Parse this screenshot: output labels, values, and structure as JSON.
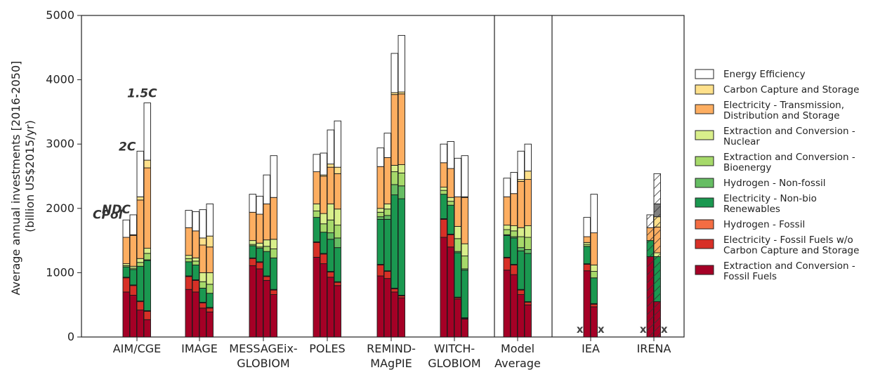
{
  "chart_data": {
    "type": "bar",
    "stacked": true,
    "title": "",
    "ylabel": "Average annual investments [2016-2050]\n(billion US$2015/yr)",
    "ylim": [
      0,
      5000
    ],
    "yticks": [
      0,
      1000,
      2000,
      3000,
      4000,
      5000
    ],
    "grid": false,
    "legend_position": "right",
    "scenario_labels": [
      "CPol",
      "NDC",
      "2C",
      "1.5C"
    ],
    "missing_marker": "x",
    "groups": [
      {
        "label": "AIM/CGE",
        "bars": 4
      },
      {
        "label": "IMAGE",
        "bars": 4
      },
      {
        "label": "MESSAGEix-\nGLOBIOM",
        "bars": 4
      },
      {
        "label": "POLES",
        "bars": 4
      },
      {
        "label": "REMIND-\nMAgPIE",
        "bars": 4
      },
      {
        "label": "WITCH-\nGLOBIOM",
        "bars": 4
      },
      {
        "label": "Model\nAverage",
        "bars": 4
      },
      {
        "label": "IEA",
        "bars": 4,
        "missing": [
          0,
          3
        ]
      },
      {
        "label": "IRENA",
        "bars": 4,
        "missing": [
          0,
          3
        ],
        "hatched": true
      }
    ],
    "series": [
      {
        "name": "Extraction and Conversion -\nFossil Fuels",
        "color": "#a50026",
        "values": [
          [
            700,
            650,
            420,
            270
          ],
          [
            740,
            700,
            450,
            390
          ],
          [
            1110,
            1060,
            880,
            660
          ],
          [
            1240,
            1140,
            930,
            800
          ],
          [
            950,
            910,
            700,
            610
          ],
          [
            1550,
            1400,
            590,
            280
          ],
          [
            1040,
            970,
            660,
            500
          ],
          [
            null,
            1030,
            470,
            null
          ],
          [
            null,
            1250,
            550,
            null
          ]
        ]
      },
      {
        "name": "Electricity - Fossil Fuels w/o\nCarbon Capture and Storage",
        "color": "#d73027",
        "values": [
          [
            220,
            150,
            130,
            130
          ],
          [
            200,
            180,
            80,
            60
          ],
          [
            110,
            100,
            60,
            70
          ],
          [
            230,
            150,
            80,
            50
          ],
          [
            170,
            110,
            50,
            30
          ],
          [
            280,
            190,
            20,
            10
          ],
          [
            190,
            150,
            70,
            40
          ],
          [
            null,
            100,
            40,
            null
          ],
          [
            null,
            0,
            0,
            null
          ]
        ]
      },
      {
        "name": "Hydrogen - Fossil",
        "color": "#f46d43",
        "values": [
          [
            10,
            10,
            10,
            10
          ],
          [
            10,
            10,
            10,
            10
          ],
          [
            10,
            10,
            10,
            10
          ],
          [
            10,
            10,
            10,
            10
          ],
          [
            10,
            10,
            10,
            10
          ],
          [
            10,
            10,
            10,
            10
          ],
          [
            10,
            10,
            10,
            10
          ],
          [
            null,
            10,
            10,
            null
          ],
          [
            null,
            0,
            0,
            null
          ]
        ]
      },
      {
        "name": "Electricity - Non-bio\nRenewables",
        "color": "#1a9850",
        "values": [
          [
            160,
            240,
            540,
            780
          ],
          [
            220,
            230,
            220,
            220
          ],
          [
            190,
            210,
            380,
            490
          ],
          [
            380,
            330,
            500,
            530
          ],
          [
            700,
            800,
            1450,
            1500
          ],
          [
            380,
            450,
            690,
            740
          ],
          [
            340,
            410,
            600,
            750
          ],
          [
            null,
            270,
            400,
            null
          ],
          [
            null,
            250,
            700,
            null
          ]
        ]
      },
      {
        "name": "Hydrogen - Non-fossil",
        "color": "#66bd63",
        "values": [
          [
            0,
            0,
            0,
            10
          ],
          [
            0,
            0,
            0,
            0
          ],
          [
            0,
            0,
            0,
            0
          ],
          [
            0,
            0,
            100,
            150
          ],
          [
            40,
            60,
            160,
            200
          ],
          [
            0,
            0,
            20,
            20
          ],
          [
            10,
            20,
            50,
            60
          ],
          [
            null,
            0,
            0,
            null
          ],
          [
            null,
            0,
            0,
            null
          ]
        ]
      },
      {
        "name": "Extraction and Conversion -\nBioenergy",
        "color": "#a6d96a",
        "values": [
          [
            20,
            20,
            60,
            100
          ],
          [
            50,
            60,
            100,
            140
          ],
          [
            20,
            20,
            80,
            140
          ],
          [
            100,
            130,
            200,
            200
          ],
          [
            70,
            100,
            200,
            200
          ],
          [
            60,
            60,
            200,
            200
          ],
          [
            80,
            90,
            170,
            190
          ],
          [
            null,
            30,
            100,
            null
          ],
          [
            null,
            0,
            0,
            null
          ]
        ]
      },
      {
        "name": "Extraction and Conversion -\nNuclear",
        "color": "#d9ef8b",
        "values": [
          [
            30,
            30,
            60,
            80
          ],
          [
            50,
            50,
            140,
            180
          ],
          [
            60,
            60,
            100,
            150
          ],
          [
            110,
            160,
            250,
            250
          ],
          [
            60,
            80,
            100,
            130
          ],
          [
            50,
            60,
            190,
            190
          ],
          [
            70,
            80,
            140,
            180
          ],
          [
            null,
            30,
            100,
            null
          ],
          [
            null,
            0,
            60,
            null
          ]
        ]
      },
      {
        "name": "Electricity - Transmission,\nDistribution and Storage",
        "color": "#fdae61",
        "values": [
          [
            410,
            480,
            910,
            1250
          ],
          [
            430,
            420,
            430,
            400
          ],
          [
            440,
            450,
            560,
            650
          ],
          [
            500,
            580,
            570,
            550
          ],
          [
            650,
            720,
            1100,
            1100
          ],
          [
            380,
            450,
            460,
            720
          ],
          [
            440,
            500,
            720,
            720
          ],
          [
            null,
            90,
            500,
            null
          ],
          [
            null,
            200,
            400,
            null
          ]
        ]
      },
      {
        "name": "Carbon Capture and Storage",
        "color": "#fee08b",
        "values": [
          [
            0,
            10,
            50,
            120
          ],
          [
            0,
            0,
            110,
            170
          ],
          [
            0,
            0,
            0,
            0
          ],
          [
            0,
            20,
            50,
            100
          ],
          [
            0,
            0,
            30,
            30
          ],
          [
            0,
            0,
            0,
            10
          ],
          [
            0,
            0,
            30,
            130
          ],
          [
            null,
            0,
            0,
            null
          ],
          [
            null,
            0,
            160,
            null
          ]
        ]
      },
      {
        "name": "Energy Efficiency",
        "color": "#ffffff",
        "values": [
          [
            270,
            310,
            710,
            890
          ],
          [
            270,
            300,
            440,
            500
          ],
          [
            280,
            280,
            450,
            650
          ],
          [
            270,
            340,
            530,
            720
          ],
          [
            290,
            380,
            610,
            880
          ],
          [
            290,
            420,
            600,
            640
          ],
          [
            290,
            330,
            440,
            420
          ],
          [
            null,
            300,
            600,
            null
          ],
          [
            null,
            200,
            470,
            null
          ]
        ]
      }
    ],
    "extra_segments": [
      {
        "group": "IRENA",
        "bar": 2,
        "color": "#808080",
        "value": 200
      }
    ]
  }
}
